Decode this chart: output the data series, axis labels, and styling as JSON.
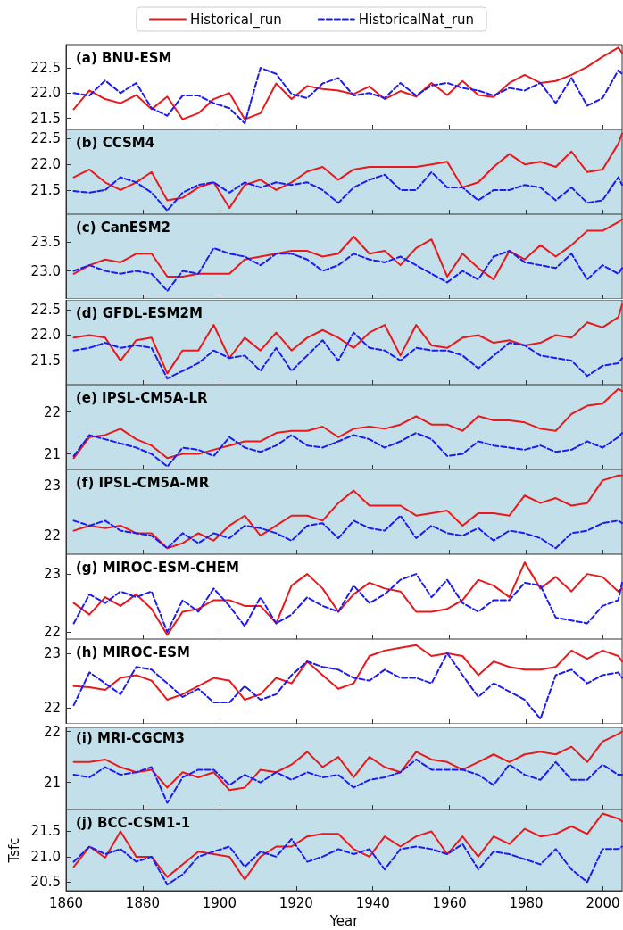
{
  "chart_data": [
    {
      "type": "line",
      "title": "(a) BNU-ESM",
      "x": [
        1862,
        1866.1,
        1870.2,
        1874.2,
        1878.3,
        1882.3,
        1886.4,
        1890.4,
        1894.5,
        1898.5,
        1902.6,
        1906.6,
        1910.7,
        1914.8,
        1918.8,
        1922.9,
        1926.9,
        1931,
        1935,
        1939.1,
        1943.1,
        1947.2,
        1951.3,
        1955.3,
        1959.4,
        1963.4,
        1967.5,
        1971.5,
        1975.6,
        1979.6,
        1983.7,
        1987.7,
        1991.8,
        1995.9,
        1999.9,
        2004,
        2005
      ],
      "xlim": [
        1860,
        2005
      ],
      "xticks": [
        1860,
        1880,
        1900,
        1920,
        1940,
        1960,
        1980,
        2000
      ],
      "ylim": [
        21.28,
        22.96
      ],
      "yticks": [
        21.5,
        {
          "value": 22,
          "label": "22.0"
        },
        22.5
      ],
      "tick_labels": "y",
      "legend": "top",
      "marker": "none",
      "series": [
        {
          "name": "Historical_run",
          "color": "#e8191c",
          "line_style": "solid",
          "values": [
            21.68,
            22.05,
            21.88,
            21.8,
            21.96,
            21.68,
            21.93,
            21.48,
            21.6,
            21.88,
            22.0,
            21.48,
            21.6,
            22.19,
            21.88,
            22.14,
            22.08,
            22.05,
            21.98,
            22.13,
            21.88,
            22.04,
            21.93,
            22.2,
            21.96,
            22.24,
            21.96,
            21.92,
            22.2,
            22.36,
            22.2,
            22.24,
            22.36,
            22.52,
            22.72,
            22.9,
            22.8
          ]
        },
        {
          "name": "HistoricalNat_run",
          "color": "#1c1cf0",
          "line_style": "dashed",
          "values": [
            22.0,
            21.95,
            22.25,
            22.0,
            22.2,
            21.7,
            21.55,
            21.95,
            21.95,
            21.8,
            21.7,
            21.4,
            22.5,
            22.38,
            21.98,
            21.9,
            22.19,
            22.3,
            21.95,
            22.0,
            21.9,
            22.2,
            21.95,
            22.15,
            22.2,
            22.1,
            22.05,
            21.95,
            22.1,
            22.05,
            22.2,
            21.8,
            22.3,
            21.75,
            21.9,
            22.45,
            22.38
          ]
        }
      ]
    },
    {
      "type": "line",
      "title": "(b) CCSM4",
      "x": [
        1862,
        1866.1,
        1870.2,
        1874.2,
        1878.3,
        1882.3,
        1886.4,
        1890.4,
        1894.5,
        1898.5,
        1902.6,
        1906.6,
        1910.7,
        1914.8,
        1918.8,
        1922.9,
        1926.9,
        1931,
        1935,
        1939.1,
        1943.1,
        1947.2,
        1951.3,
        1955.3,
        1959.4,
        1963.4,
        1967.5,
        1971.5,
        1975.6,
        1979.6,
        1983.7,
        1987.7,
        1991.8,
        1995.9,
        1999.9,
        2004,
        2005
      ],
      "xlim": [
        1860,
        2005
      ],
      "xticks": [
        1860,
        1880,
        1900,
        1920,
        1940,
        1960,
        1980,
        2000
      ],
      "ylim": [
        21.03,
        22.68
      ],
      "yticks": [
        21.5,
        {
          "value": 22,
          "label": "22.0"
        },
        22.5
      ],
      "tick_labels": "y",
      "marker": "none",
      "series": [
        {
          "color": "#e8191c",
          "line_style": "solid",
          "values": [
            21.75,
            21.9,
            21.65,
            21.5,
            21.65,
            21.85,
            21.3,
            21.35,
            21.55,
            21.65,
            21.15,
            21.6,
            21.7,
            21.5,
            21.65,
            21.86,
            21.95,
            21.7,
            21.9,
            21.95,
            21.95,
            21.95,
            21.95,
            22.0,
            22.05,
            21.55,
            21.65,
            21.95,
            22.2,
            22.0,
            22.05,
            21.95,
            22.25,
            21.85,
            21.9,
            22.4,
            22.6
          ]
        },
        {
          "color": "#1c1cf0",
          "line_style": "dashed",
          "values": [
            21.48,
            21.45,
            21.5,
            21.75,
            21.65,
            21.45,
            21.1,
            21.45,
            21.6,
            21.65,
            21.45,
            21.65,
            21.55,
            21.65,
            21.6,
            21.65,
            21.5,
            21.25,
            21.55,
            21.7,
            21.8,
            21.5,
            21.5,
            21.85,
            21.55,
            21.55,
            21.3,
            21.5,
            21.5,
            21.6,
            21.55,
            21.3,
            21.55,
            21.25,
            21.3,
            21.75,
            21.6
          ]
        }
      ]
    },
    {
      "type": "line",
      "title": "(c) CanESM2",
      "x": [
        1862,
        1866.1,
        1870.2,
        1874.2,
        1878.3,
        1882.3,
        1886.4,
        1890.4,
        1894.5,
        1898.5,
        1902.6,
        1906.6,
        1910.7,
        1914.8,
        1918.8,
        1922.9,
        1926.9,
        1931,
        1935,
        1939.1,
        1943.1,
        1947.2,
        1951.3,
        1955.3,
        1959.4,
        1963.4,
        1967.5,
        1971.5,
        1975.6,
        1979.6,
        1983.7,
        1987.7,
        1991.8,
        1995.9,
        1999.9,
        2004,
        2005
      ],
      "xlim": [
        1860,
        2005
      ],
      "xticks": [
        1860,
        1880,
        1900,
        1920,
        1940,
        1960,
        1980,
        2000
      ],
      "ylim": [
        22.51,
        23.99
      ],
      "yticks": [
        {
          "value": 23,
          "label": "23.0"
        },
        23.5
      ],
      "tick_labels": "y",
      "marker": "none",
      "series": [
        {
          "color": "#e8191c",
          "line_style": "solid",
          "values": [
            22.95,
            23.1,
            23.2,
            23.15,
            23.3,
            23.3,
            22.9,
            22.9,
            22.95,
            22.95,
            22.95,
            23.2,
            23.25,
            23.3,
            23.35,
            23.35,
            23.25,
            23.3,
            23.6,
            23.3,
            23.35,
            23.1,
            23.4,
            23.55,
            22.9,
            23.3,
            23.05,
            22.85,
            23.35,
            23.2,
            23.45,
            23.25,
            23.45,
            23.7,
            23.7,
            23.85,
            23.9
          ]
        },
        {
          "color": "#1c1cf0",
          "line_style": "dashed",
          "values": [
            23.0,
            23.1,
            23.0,
            22.95,
            23.0,
            22.95,
            22.65,
            23.0,
            22.95,
            23.4,
            23.3,
            23.25,
            23.1,
            23.3,
            23.3,
            23.2,
            23.0,
            23.1,
            23.3,
            23.2,
            23.15,
            23.25,
            23.1,
            22.95,
            22.8,
            23.0,
            22.85,
            23.25,
            23.35,
            23.15,
            23.1,
            23.05,
            23.3,
            22.85,
            23.1,
            22.95,
            23.05
          ]
        }
      ]
    },
    {
      "type": "line",
      "title": "(d) GFDL-ESM2M",
      "x": [
        1862,
        1866.1,
        1870.2,
        1874.2,
        1878.3,
        1882.3,
        1886.4,
        1890.4,
        1894.5,
        1898.5,
        1902.6,
        1906.6,
        1910.7,
        1914.8,
        1918.8,
        1922.9,
        1926.9,
        1931,
        1935,
        1939.1,
        1943.1,
        1947.2,
        1951.3,
        1955.3,
        1959.4,
        1963.4,
        1967.5,
        1971.5,
        1975.6,
        1979.6,
        1983.7,
        1987.7,
        1991.8,
        1995.9,
        1999.9,
        2004,
        2005
      ],
      "xlim": [
        1860,
        2005
      ],
      "xticks": [
        1860,
        1880,
        1900,
        1920,
        1940,
        1960,
        1980,
        2000
      ],
      "ylim": [
        21.03,
        22.69
      ],
      "yticks": [
        21.5,
        {
          "value": 22,
          "label": "22.0"
        },
        22.5
      ],
      "tick_labels": "y",
      "marker": "none",
      "series": [
        {
          "color": "#e8191c",
          "line_style": "solid",
          "values": [
            21.95,
            22.0,
            21.95,
            21.5,
            21.9,
            21.95,
            21.25,
            21.7,
            21.7,
            22.2,
            21.55,
            21.95,
            21.7,
            22.05,
            21.7,
            21.95,
            22.1,
            21.95,
            21.75,
            22.05,
            22.2,
            21.6,
            22.2,
            21.8,
            21.75,
            21.95,
            22.0,
            21.85,
            21.9,
            21.8,
            21.85,
            22.0,
            21.95,
            22.25,
            22.15,
            22.35,
            22.6
          ]
        },
        {
          "color": "#1c1cf0",
          "line_style": "dashed",
          "values": [
            21.7,
            21.75,
            21.85,
            21.75,
            21.8,
            21.75,
            21.15,
            21.3,
            21.45,
            21.7,
            21.55,
            21.6,
            21.3,
            21.75,
            21.3,
            21.6,
            21.9,
            21.5,
            22.05,
            21.75,
            21.7,
            21.5,
            21.75,
            21.7,
            21.7,
            21.6,
            21.35,
            21.6,
            21.85,
            21.8,
            21.6,
            21.55,
            21.5,
            21.2,
            21.4,
            21.45,
            21.55
          ]
        }
      ]
    },
    {
      "type": "line",
      "title": "(e) IPSL-CM5A-LR",
      "x": [
        1862,
        1866.1,
        1870.2,
        1874.2,
        1878.3,
        1882.3,
        1886.4,
        1890.4,
        1894.5,
        1898.5,
        1902.6,
        1906.6,
        1910.7,
        1914.8,
        1918.8,
        1922.9,
        1926.9,
        1931,
        1935,
        1939.1,
        1943.1,
        1947.2,
        1951.3,
        1955.3,
        1959.4,
        1963.4,
        1967.5,
        1971.5,
        1975.6,
        1979.6,
        1983.7,
        1987.7,
        1991.8,
        1995.9,
        1999.9,
        2004,
        2005
      ],
      "xlim": [
        1860,
        2005
      ],
      "xticks": [
        1860,
        1880,
        1900,
        1920,
        1940,
        1960,
        1980,
        2000
      ],
      "ylim": [
        20.63,
        22.65
      ],
      "yticks": [
        21,
        22
      ],
      "tick_labels": "y",
      "marker": "none",
      "series": [
        {
          "color": "#e8191c",
          "line_style": "solid",
          "values": [
            20.9,
            21.4,
            21.45,
            21.6,
            21.35,
            21.2,
            20.9,
            21.0,
            21.0,
            21.1,
            21.2,
            21.3,
            21.3,
            21.5,
            21.55,
            21.55,
            21.65,
            21.4,
            21.6,
            21.65,
            21.6,
            21.7,
            21.9,
            21.7,
            21.7,
            21.55,
            21.9,
            21.8,
            21.8,
            21.75,
            21.6,
            21.55,
            21.95,
            22.15,
            22.2,
            22.55,
            22.5
          ]
        },
        {
          "color": "#1c1cf0",
          "line_style": "dashed",
          "values": [
            20.95,
            21.45,
            21.35,
            21.25,
            21.15,
            21.0,
            20.7,
            21.15,
            21.1,
            20.95,
            21.4,
            21.15,
            21.05,
            21.2,
            21.45,
            21.2,
            21.15,
            21.3,
            21.45,
            21.35,
            21.15,
            21.3,
            21.5,
            21.35,
            20.95,
            21.0,
            21.3,
            21.2,
            21.15,
            21.1,
            21.2,
            21.05,
            21.1,
            21.3,
            21.15,
            21.4,
            21.5
          ]
        }
      ]
    },
    {
      "type": "line",
      "title": "(f) IPSL-CM5A-MR",
      "x": [
        1862,
        1866.1,
        1870.2,
        1874.2,
        1878.3,
        1882.3,
        1886.4,
        1890.4,
        1894.5,
        1898.5,
        1902.6,
        1906.6,
        1910.7,
        1914.8,
        1918.8,
        1922.9,
        1926.9,
        1931,
        1935,
        1939.1,
        1943.1,
        1947.2,
        1951.3,
        1955.3,
        1959.4,
        1963.4,
        1967.5,
        1971.5,
        1975.6,
        1979.6,
        1983.7,
        1987.7,
        1991.8,
        1995.9,
        1999.9,
        2004,
        2005
      ],
      "xlim": [
        1860,
        2005
      ],
      "xticks": [
        1860,
        1880,
        1900,
        1920,
        1940,
        1960,
        1980,
        2000
      ],
      "ylim": [
        21.63,
        23.32
      ],
      "yticks": [
        22,
        23
      ],
      "tick_labels": "y",
      "marker": "none",
      "series": [
        {
          "color": "#e8191c",
          "line_style": "solid",
          "values": [
            22.1,
            22.2,
            22.15,
            22.2,
            22.05,
            22.05,
            21.75,
            21.85,
            22.05,
            21.9,
            22.2,
            22.4,
            22.0,
            22.2,
            22.4,
            22.4,
            22.3,
            22.65,
            22.9,
            22.6,
            22.6,
            22.6,
            22.4,
            22.45,
            22.5,
            22.2,
            22.45,
            22.45,
            22.4,
            22.8,
            22.65,
            22.75,
            22.6,
            22.65,
            23.1,
            23.2,
            23.2
          ]
        },
        {
          "color": "#1c1cf0",
          "line_style": "dashed",
          "values": [
            22.3,
            22.2,
            22.3,
            22.1,
            22.05,
            22.0,
            21.75,
            22.05,
            21.85,
            22.05,
            21.95,
            22.2,
            22.15,
            22.05,
            21.9,
            22.2,
            22.25,
            21.95,
            22.3,
            22.15,
            22.1,
            22.4,
            21.95,
            22.2,
            22.05,
            22.0,
            22.15,
            21.9,
            22.1,
            22.05,
            21.95,
            21.75,
            22.05,
            22.1,
            22.25,
            22.3,
            22.25
          ]
        }
      ]
    },
    {
      "type": "line",
      "title": "(g) MIROC-ESM-CHEM",
      "x": [
        1862,
        1866.1,
        1870.2,
        1874.2,
        1878.3,
        1882.3,
        1886.4,
        1890.4,
        1894.5,
        1898.5,
        1902.6,
        1906.6,
        1910.7,
        1914.8,
        1918.8,
        1922.9,
        1926.9,
        1931,
        1935,
        1939.1,
        1943.1,
        1947.2,
        1951.3,
        1955.3,
        1959.4,
        1963.4,
        1967.5,
        1971.5,
        1975.6,
        1979.6,
        1983.7,
        1987.7,
        1991.8,
        1995.9,
        1999.9,
        2004,
        2005
      ],
      "xlim": [
        1860,
        2005
      ],
      "xticks": [
        1860,
        1880,
        1900,
        1920,
        1940,
        1960,
        1980,
        2000
      ],
      "ylim": [
        21.88,
        23.34
      ],
      "yticks": [
        22,
        23
      ],
      "tick_labels": "y",
      "marker": "none",
      "series": [
        {
          "color": "#e8191c",
          "line_style": "solid",
          "values": [
            22.5,
            22.3,
            22.6,
            22.45,
            22.65,
            22.4,
            21.95,
            22.35,
            22.4,
            22.55,
            22.55,
            22.45,
            22.45,
            22.15,
            22.8,
            23.0,
            22.75,
            22.35,
            22.65,
            22.85,
            22.75,
            22.7,
            22.35,
            22.35,
            22.4,
            22.55,
            22.9,
            22.8,
            22.6,
            23.2,
            22.75,
            22.95,
            22.7,
            23.0,
            22.95,
            22.7,
            22.75
          ]
        },
        {
          "color": "#1c1cf0",
          "line_style": "dashed",
          "values": [
            22.15,
            22.65,
            22.5,
            22.7,
            22.6,
            22.7,
            22.0,
            22.55,
            22.35,
            22.75,
            22.45,
            22.1,
            22.6,
            22.15,
            22.3,
            22.6,
            22.45,
            22.35,
            22.8,
            22.5,
            22.65,
            22.9,
            23.0,
            22.6,
            22.9,
            22.5,
            22.35,
            22.55,
            22.55,
            22.85,
            22.8,
            22.25,
            22.2,
            22.15,
            22.45,
            22.55,
            22.85
          ]
        }
      ]
    },
    {
      "type": "line",
      "title": "(h) MIROC-ESM",
      "x": [
        1862,
        1866.1,
        1870.2,
        1874.2,
        1878.3,
        1882.3,
        1886.4,
        1890.4,
        1894.5,
        1898.5,
        1902.6,
        1906.6,
        1910.7,
        1914.8,
        1918.8,
        1922.9,
        1926.9,
        1931,
        1935,
        1939.1,
        1943.1,
        1947.2,
        1951.3,
        1955.3,
        1959.4,
        1963.4,
        1967.5,
        1971.5,
        1975.6,
        1979.6,
        1983.7,
        1987.7,
        1991.8,
        1995.9,
        1999.9,
        2004,
        2005
      ],
      "xlim": [
        1860,
        2005
      ],
      "xticks": [
        1860,
        1880,
        1900,
        1920,
        1940,
        1960,
        1980,
        2000
      ],
      "ylim": [
        21.71,
        23.26
      ],
      "yticks": [
        22,
        23
      ],
      "tick_labels": "y",
      "marker": "none",
      "series": [
        {
          "color": "#e8191c",
          "line_style": "solid",
          "values": [
            22.4,
            22.38,
            22.33,
            22.55,
            22.6,
            22.5,
            22.15,
            22.25,
            22.4,
            22.55,
            22.5,
            22.15,
            22.25,
            22.55,
            22.45,
            22.85,
            22.6,
            22.35,
            22.45,
            22.95,
            23.05,
            23.1,
            23.15,
            22.95,
            23.0,
            22.95,
            22.6,
            22.85,
            22.75,
            22.7,
            22.7,
            22.75,
            23.05,
            22.9,
            23.05,
            22.95,
            22.85
          ]
        },
        {
          "color": "#1c1cf0",
          "line_style": "dashed",
          "values": [
            22.05,
            22.65,
            22.45,
            22.25,
            22.75,
            22.7,
            22.45,
            22.2,
            22.35,
            22.1,
            22.1,
            22.4,
            22.15,
            22.25,
            22.6,
            22.85,
            22.75,
            22.7,
            22.55,
            22.5,
            22.7,
            22.55,
            22.55,
            22.45,
            23.0,
            22.6,
            22.2,
            22.45,
            22.3,
            22.15,
            21.8,
            22.6,
            22.7,
            22.45,
            22.6,
            22.65,
            22.55
          ]
        }
      ]
    },
    {
      "type": "line",
      "title": "(i) MRI-CGCM3",
      "x": [
        1862,
        1866.1,
        1870.2,
        1874.2,
        1878.3,
        1882.3,
        1886.4,
        1890.4,
        1894.5,
        1898.5,
        1902.6,
        1906.6,
        1910.7,
        1914.8,
        1918.8,
        1922.9,
        1926.9,
        1931,
        1935,
        1939.1,
        1943.1,
        1947.2,
        1951.3,
        1955.3,
        1959.4,
        1963.4,
        1967.5,
        1971.5,
        1975.6,
        1979.6,
        1983.7,
        1987.7,
        1991.8,
        1995.9,
        1999.9,
        2004,
        2005
      ],
      "xlim": [
        1860,
        2005
      ],
      "xticks": [
        1860,
        1880,
        1900,
        1920,
        1940,
        1960,
        1980,
        2000
      ],
      "ylim": [
        20.47,
        22.08
      ],
      "yticks": [
        21,
        22
      ],
      "tick_labels": "y",
      "marker": "none",
      "series": [
        {
          "color": "#e8191c",
          "line_style": "solid",
          "values": [
            21.4,
            21.4,
            21.45,
            21.3,
            21.2,
            21.25,
            20.9,
            21.2,
            21.1,
            21.2,
            20.85,
            20.9,
            21.25,
            21.2,
            21.35,
            21.6,
            21.3,
            21.5,
            21.1,
            21.5,
            21.3,
            21.2,
            21.6,
            21.45,
            21.4,
            21.25,
            21.4,
            21.55,
            21.4,
            21.55,
            21.6,
            21.55,
            21.7,
            21.4,
            21.8,
            21.95,
            22.0
          ]
        },
        {
          "color": "#1c1cf0",
          "line_style": "dashed",
          "values": [
            21.15,
            21.1,
            21.3,
            21.15,
            21.2,
            21.3,
            20.6,
            21.1,
            21.25,
            21.25,
            20.95,
            21.15,
            21.0,
            21.2,
            21.05,
            21.2,
            21.1,
            21.15,
            20.9,
            21.05,
            21.1,
            21.2,
            21.45,
            21.25,
            21.25,
            21.25,
            21.15,
            20.95,
            21.35,
            21.15,
            21.05,
            21.4,
            21.05,
            21.05,
            21.35,
            21.15,
            21.15
          ]
        }
      ]
    },
    {
      "type": "line",
      "title": "(j) BCC-CSM1-1",
      "xlabel": "Year",
      "ylabel": "Tsfc",
      "x": [
        1862,
        1866.1,
        1870.2,
        1874.2,
        1878.3,
        1882.3,
        1886.4,
        1890.4,
        1894.5,
        1898.5,
        1902.6,
        1906.6,
        1910.7,
        1914.8,
        1918.8,
        1922.9,
        1926.9,
        1931,
        1935,
        1939.1,
        1943.1,
        1947.2,
        1951.3,
        1955.3,
        1959.4,
        1963.4,
        1967.5,
        1971.5,
        1975.6,
        1979.6,
        1983.7,
        1987.7,
        1991.8,
        1995.9,
        1999.9,
        2004,
        2005
      ],
      "xlim": [
        1860,
        2005
      ],
      "xticks": [
        1860,
        1880,
        1900,
        1920,
        1940,
        1960,
        1980,
        2000
      ],
      "ylim": [
        20.33,
        21.93
      ],
      "yticks": [
        20.5,
        {
          "value": 21,
          "label": "21.0"
        },
        21.5
      ],
      "marker": "none",
      "series": [
        {
          "color": "#e8191c",
          "line_style": "solid",
          "values": [
            20.8,
            21.2,
            20.98,
            21.5,
            21.0,
            21.0,
            20.6,
            20.85,
            21.1,
            21.05,
            21.0,
            20.55,
            21.0,
            21.2,
            21.2,
            21.4,
            21.45,
            21.45,
            21.15,
            21.0,
            21.4,
            21.2,
            21.4,
            21.5,
            21.05,
            21.4,
            21.0,
            21.4,
            21.25,
            21.55,
            21.4,
            21.45,
            21.6,
            21.45,
            21.85,
            21.75,
            21.7
          ]
        },
        {
          "color": "#1c1cf0",
          "line_style": "dashed",
          "values": [
            20.9,
            21.2,
            21.05,
            21.15,
            20.9,
            21.0,
            20.45,
            20.65,
            21.0,
            21.1,
            21.2,
            20.8,
            21.1,
            21.0,
            21.35,
            20.9,
            21.0,
            21.15,
            21.05,
            21.15,
            20.75,
            21.15,
            21.2,
            21.15,
            21.05,
            21.25,
            20.75,
            21.1,
            21.05,
            20.95,
            20.85,
            21.15,
            20.75,
            20.5,
            21.15,
            21.15,
            21.2
          ]
        }
      ]
    }
  ]
}
